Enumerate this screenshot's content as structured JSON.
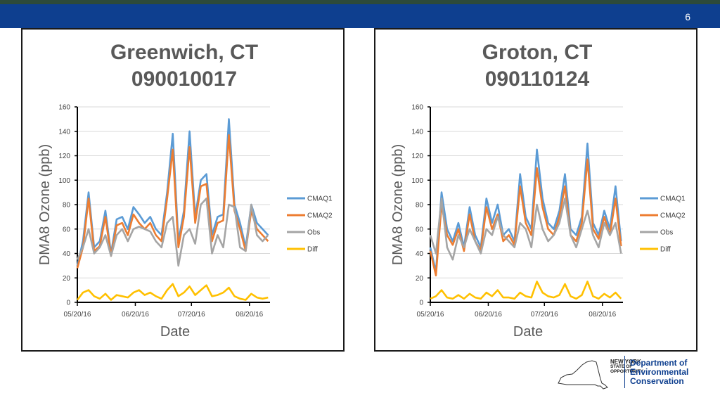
{
  "slide_number": "6",
  "colors": {
    "CMAQ1": "#5b9bd5",
    "CMAQ2": "#ed7d31",
    "Obs": "#a5a5a5",
    "Diff": "#ffc000"
  },
  "logo": {
    "nys_line1": "NEW YORK",
    "nys_line2": "STATE OF",
    "nys_line3": "OPPORTUNITY",
    "dec_line1": "Department of",
    "dec_line2": "Environmental",
    "dec_line3": "Conservation"
  },
  "chart_data": [
    {
      "type": "line",
      "title": "Greenwich, CT",
      "subtitle": "090010017",
      "xlabel": "Date",
      "ylabel": "DMA8 Ozone (ppb)",
      "ylim": [
        0,
        160
      ],
      "yticks": [
        "0",
        "20",
        "40",
        "60",
        "80",
        "100",
        "120",
        "140",
        "160"
      ],
      "xlim": [
        "2016-05-20",
        "2016-08-31"
      ],
      "xticks": [
        {
          "date": "2016-05-20",
          "label": "05/20/16"
        },
        {
          "date": "2016-06-20",
          "label": "06/20/16"
        },
        {
          "date": "2016-07-20",
          "label": "07/20/16"
        },
        {
          "date": "2016-08-20",
          "label": "08/20/16"
        }
      ],
      "x": [
        "2016-05-20",
        "2016-05-23",
        "2016-05-26",
        "2016-05-29",
        "2016-06-01",
        "2016-06-04",
        "2016-06-07",
        "2016-06-10",
        "2016-06-13",
        "2016-06-16",
        "2016-06-19",
        "2016-06-22",
        "2016-06-25",
        "2016-06-28",
        "2016-07-01",
        "2016-07-04",
        "2016-07-07",
        "2016-07-10",
        "2016-07-13",
        "2016-07-16",
        "2016-07-19",
        "2016-07-22",
        "2016-07-25",
        "2016-07-28",
        "2016-07-31",
        "2016-08-03",
        "2016-08-06",
        "2016-08-09",
        "2016-08-12",
        "2016-08-15",
        "2016-08-18",
        "2016-08-21",
        "2016-08-24",
        "2016-08-27",
        "2016-08-30"
      ],
      "legend_position": "right",
      "series": [
        {
          "name": "CMAQ1",
          "values": [
            30,
            50,
            90,
            45,
            50,
            75,
            40,
            68,
            70,
            60,
            78,
            72,
            65,
            70,
            60,
            55,
            90,
            138,
            50,
            75,
            140,
            70,
            100,
            105,
            55,
            70,
            72,
            150,
            80,
            65,
            45,
            80,
            65,
            60,
            55
          ]
        },
        {
          "name": "CMAQ2",
          "values": [
            28,
            45,
            85,
            42,
            46,
            70,
            38,
            63,
            65,
            55,
            72,
            65,
            60,
            65,
            55,
            50,
            85,
            125,
            45,
            70,
            127,
            65,
            95,
            97,
            50,
            65,
            67,
            137,
            75,
            60,
            42,
            75,
            60,
            55,
            50
          ]
        },
        {
          "name": "Obs",
          "values": [
            35,
            45,
            60,
            40,
            45,
            55,
            38,
            55,
            60,
            50,
            60,
            62,
            60,
            58,
            50,
            45,
            65,
            70,
            30,
            55,
            60,
            48,
            80,
            85,
            40,
            55,
            45,
            80,
            78,
            45,
            42,
            80,
            55,
            50,
            55
          ]
        },
        {
          "name": "Diff",
          "values": [
            2,
            8,
            10,
            5,
            3,
            7,
            2,
            6,
            5,
            4,
            8,
            10,
            6,
            8,
            5,
            3,
            10,
            15,
            5,
            8,
            13,
            6,
            10,
            14,
            5,
            6,
            8,
            12,
            5,
            3,
            2,
            7,
            4,
            3,
            4
          ]
        }
      ]
    },
    {
      "type": "line",
      "title": "Groton, CT",
      "subtitle": "090110124",
      "xlabel": "Date",
      "ylabel": "DMA8 Ozone  (ppb)",
      "ylim": [
        0,
        160
      ],
      "yticks": [
        "0",
        "20",
        "40",
        "60",
        "80",
        "100",
        "120",
        "140",
        "160"
      ],
      "xlim": [
        "2016-05-20",
        "2016-08-31"
      ],
      "xticks": [
        {
          "date": "2016-05-20",
          "label": "05/20/16"
        },
        {
          "date": "2016-06-20",
          "label": "06/20/16"
        },
        {
          "date": "2016-07-20",
          "label": "07/20/16"
        },
        {
          "date": "2016-08-20",
          "label": "08/20/16"
        }
      ],
      "x": [
        "2016-05-20",
        "2016-05-23",
        "2016-05-26",
        "2016-05-29",
        "2016-06-01",
        "2016-06-04",
        "2016-06-07",
        "2016-06-10",
        "2016-06-13",
        "2016-06-16",
        "2016-06-19",
        "2016-06-22",
        "2016-06-25",
        "2016-06-28",
        "2016-07-01",
        "2016-07-04",
        "2016-07-07",
        "2016-07-10",
        "2016-07-13",
        "2016-07-16",
        "2016-07-19",
        "2016-07-22",
        "2016-07-25",
        "2016-07-28",
        "2016-07-31",
        "2016-08-03",
        "2016-08-06",
        "2016-08-09",
        "2016-08-12",
        "2016-08-15",
        "2016-08-18",
        "2016-08-21",
        "2016-08-24",
        "2016-08-27",
        "2016-08-30"
      ],
      "legend_position": "right",
      "series": [
        {
          "name": "CMAQ1",
          "values": [
            45,
            25,
            90,
            60,
            50,
            65,
            45,
            78,
            55,
            45,
            85,
            65,
            80,
            55,
            60,
            50,
            105,
            70,
            60,
            125,
            85,
            65,
            60,
            75,
            105,
            60,
            55,
            70,
            130,
            65,
            55,
            75,
            60,
            95,
            50
          ]
        },
        {
          "name": "CMAQ2",
          "values": [
            42,
            22,
            80,
            55,
            47,
            60,
            42,
            72,
            50,
            42,
            78,
            60,
            72,
            50,
            55,
            47,
            95,
            65,
            55,
            110,
            78,
            60,
            55,
            70,
            95,
            55,
            50,
            65,
            117,
            60,
            52,
            70,
            55,
            85,
            46
          ]
        },
        {
          "name": "Obs",
          "values": [
            55,
            40,
            85,
            45,
            35,
            55,
            45,
            60,
            50,
            40,
            60,
            55,
            70,
            55,
            50,
            45,
            65,
            60,
            45,
            80,
            60,
            50,
            55,
            65,
            85,
            55,
            45,
            60,
            75,
            55,
            45,
            65,
            55,
            65,
            40
          ]
        },
        {
          "name": "Diff",
          "values": [
            3,
            5,
            10,
            4,
            3,
            6,
            3,
            7,
            4,
            3,
            8,
            5,
            10,
            4,
            4,
            3,
            8,
            5,
            4,
            17,
            8,
            5,
            4,
            6,
            15,
            5,
            3,
            6,
            17,
            5,
            3,
            7,
            4,
            8,
            3
          ]
        }
      ]
    }
  ]
}
